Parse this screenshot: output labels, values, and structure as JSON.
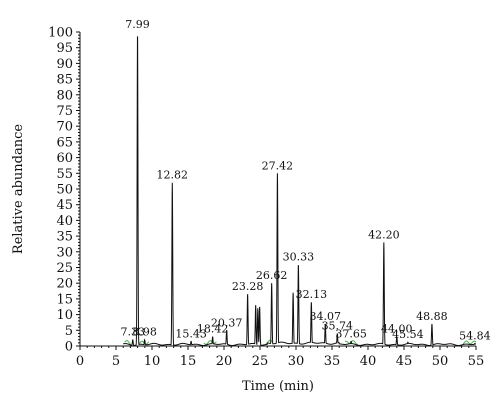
{
  "chart_data": {
    "type": "line",
    "title": "",
    "xlabel": "Time (min)",
    "ylabel": "Relative abundance",
    "xlim": [
      0,
      55
    ],
    "ylim": [
      0,
      100
    ],
    "x_ticks": [
      "0",
      "5",
      "10",
      "15",
      "20",
      "25",
      "30",
      "35",
      "40",
      "45",
      "50",
      "55"
    ],
    "y_ticks": [
      "0",
      "5",
      "10",
      "15",
      "20",
      "25",
      "30",
      "35",
      "40",
      "45",
      "50",
      "55",
      "60",
      "65",
      "70",
      "75",
      "80",
      "85",
      "90",
      "95",
      "100"
    ],
    "grid": false,
    "legend": "none",
    "line_color": "#111111",
    "baseline_tint_color": "#4caf50",
    "peaks": [
      {
        "x": 7.33,
        "y": 2,
        "label": "7.33"
      },
      {
        "x": 7.99,
        "y": 100,
        "label": "7.99"
      },
      {
        "x": 8.98,
        "y": 2,
        "label": "8.98"
      },
      {
        "x": 12.82,
        "y": 52,
        "label": "12.82"
      },
      {
        "x": 15.43,
        "y": 1.5,
        "label": "15.43"
      },
      {
        "x": 18.42,
        "y": 3,
        "label": "18.42"
      },
      {
        "x": 20.37,
        "y": 5,
        "label": "20.37"
      },
      {
        "x": 23.28,
        "y": 16.5,
        "label": "23.28"
      },
      {
        "x": 24.4,
        "y": 13,
        "label": ""
      },
      {
        "x": 24.7,
        "y": 12,
        "label": ""
      },
      {
        "x": 24.95,
        "y": 12.5,
        "label": ""
      },
      {
        "x": 26.62,
        "y": 20,
        "label": "26.62"
      },
      {
        "x": 27.42,
        "y": 55,
        "label": "27.42"
      },
      {
        "x": 29.6,
        "y": 17,
        "label": ""
      },
      {
        "x": 30.33,
        "y": 26,
        "label": "30.33"
      },
      {
        "x": 32.13,
        "y": 14,
        "label": "32.13"
      },
      {
        "x": 34.07,
        "y": 7,
        "label": "34.07"
      },
      {
        "x": 35.74,
        "y": 4,
        "label": "35.74"
      },
      {
        "x": 37.65,
        "y": 1.5,
        "label": "37.65"
      },
      {
        "x": 42.2,
        "y": 33,
        "label": "42.20"
      },
      {
        "x": 44.0,
        "y": 3,
        "label": "44.00"
      },
      {
        "x": 45.54,
        "y": 1.2,
        "label": "45.54"
      },
      {
        "x": 48.88,
        "y": 7,
        "label": "48.88"
      },
      {
        "x": 54.84,
        "y": 0.8,
        "label": "54.84"
      }
    ]
  }
}
